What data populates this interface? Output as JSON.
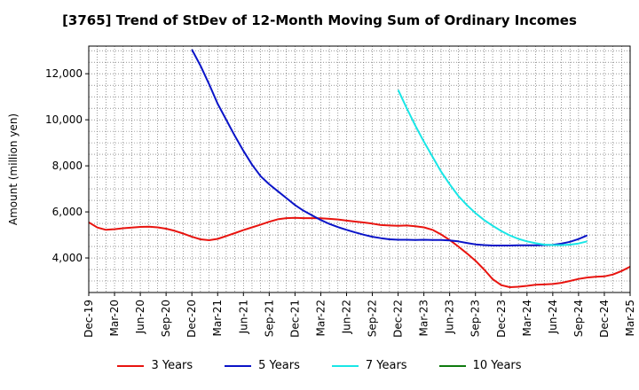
{
  "title": "[3765]  Trend of StDev of 12-Month Moving Sum of Ordinary Incomes",
  "chart_data": {
    "type": "line",
    "title": "[3765]  Trend of StDev of 12-Month Moving Sum of Ordinary Incomes",
    "xlabel": "",
    "ylabel": "Amount (million yen)",
    "ylim": [
      2500,
      13200
    ],
    "yticks": [
      4000,
      6000,
      8000,
      10000,
      12000
    ],
    "ytick_labels": [
      "4,000",
      "6,000",
      "8,000",
      "10,000",
      "12,000"
    ],
    "x_tick_labels": [
      "Dec-19",
      "Mar-20",
      "Jun-20",
      "Sep-20",
      "Dec-20",
      "Mar-21",
      "Jun-21",
      "Sep-21",
      "Dec-21",
      "Mar-22",
      "Jun-22",
      "Sep-22",
      "Dec-22",
      "Mar-23",
      "Jun-23",
      "Sep-23",
      "Dec-23",
      "Mar-24",
      "Jun-24",
      "Sep-24",
      "Dec-24",
      "Mar-25"
    ],
    "grid": true,
    "legend_position": "bottom",
    "series": [
      {
        "name": "3 Years",
        "color": "#e8140f",
        "start": 0,
        "values": [
          5550,
          5320,
          5220,
          5250,
          5290,
          5320,
          5350,
          5360,
          5330,
          5270,
          5180,
          5060,
          4920,
          4810,
          4770,
          4830,
          4950,
          5080,
          5210,
          5330,
          5450,
          5570,
          5680,
          5730,
          5740,
          5730,
          5730,
          5720,
          5700,
          5670,
          5620,
          5580,
          5540,
          5490,
          5430,
          5410,
          5400,
          5410,
          5380,
          5330,
          5220,
          5020,
          4780,
          4500,
          4200,
          3880,
          3500,
          3080,
          2820,
          2730,
          2750,
          2790,
          2840,
          2850,
          2870,
          2920,
          3000,
          3090,
          3150,
          3180,
          3200,
          3280,
          3430,
          3620
        ]
      },
      {
        "name": "5 Years",
        "color": "#0a14c8",
        "start": 12,
        "values": [
          13050,
          12350,
          11550,
          10700,
          10000,
          9300,
          8650,
          8050,
          7550,
          7200,
          6900,
          6600,
          6300,
          6050,
          5850,
          5650,
          5480,
          5340,
          5220,
          5110,
          5010,
          4920,
          4860,
          4810,
          4790,
          4790,
          4780,
          4790,
          4780,
          4780,
          4760,
          4720,
          4650,
          4590,
          4560,
          4540,
          4540,
          4540,
          4550,
          4550,
          4550,
          4560,
          4570,
          4620,
          4700,
          4820,
          4980
        ]
      },
      {
        "name": "7 Years",
        "color": "#19e6e6",
        "start": 36,
        "values": [
          11300,
          10500,
          9750,
          9050,
          8400,
          7750,
          7200,
          6700,
          6300,
          5950,
          5650,
          5400,
          5170,
          4980,
          4830,
          4720,
          4640,
          4580,
          4560,
          4560,
          4580,
          4630,
          4720
        ]
      },
      {
        "name": "10 Years",
        "color": "#0e7a0e",
        "start": 0,
        "values": []
      }
    ]
  }
}
